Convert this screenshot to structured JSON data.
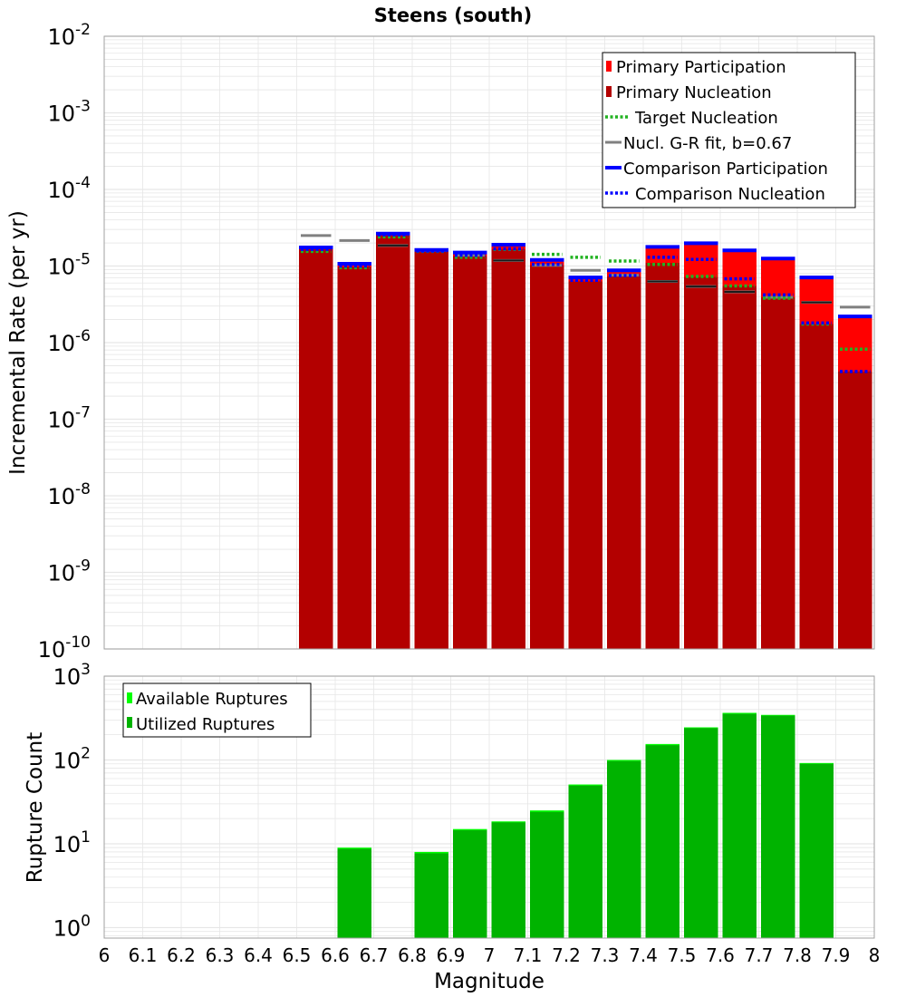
{
  "title": "Steens (south)",
  "colors": {
    "primary_participation": "#ff0000",
    "primary_nucleation": "#b30000",
    "target_nucleation": "#22b322",
    "gr_fit": "#808080",
    "comparison_participation": "#0000ff",
    "comparison_nucleation": "#0000ff",
    "available_ruptures": "#00ff00",
    "utilized_ruptures": "#00b300",
    "grid": "#e6e6e6",
    "black_tick": "#1a1a1a"
  },
  "chart_data": [
    {
      "type": "bar",
      "title": "Steens (south)",
      "xlabel": "",
      "ylabel": "Incremental Rate (per yr)",
      "yscale": "log",
      "xlim": [
        6,
        8
      ],
      "ylim": [
        1e-10,
        0.01
      ],
      "y_ticks": [
        {
          "base": "10",
          "exp": "-10"
        },
        {
          "base": "10",
          "exp": "-9"
        },
        {
          "base": "10",
          "exp": "-8"
        },
        {
          "base": "10",
          "exp": "-7"
        },
        {
          "base": "10",
          "exp": "-6"
        },
        {
          "base": "10",
          "exp": "-5"
        },
        {
          "base": "10",
          "exp": "-4"
        },
        {
          "base": "10",
          "exp": "-3"
        },
        {
          "base": "10",
          "exp": "-2"
        }
      ],
      "grid": true,
      "legend_position": "top-right",
      "bin_width": 0.1,
      "x": [
        6.55,
        6.65,
        6.75,
        6.85,
        6.95,
        7.05,
        7.15,
        7.25,
        7.35,
        7.45,
        7.55,
        7.65,
        7.75,
        7.85,
        7.95
      ],
      "series": [
        {
          "name": "Primary Participation",
          "style": "bar",
          "values": [
            1.7e-05,
            1.03e-05,
            2.6e-05,
            1.6e-05,
            1.45e-05,
            1.85e-05,
            1.17e-05,
            6.9e-06,
            8.5e-06,
            1.72e-05,
            1.9e-05,
            1.55e-05,
            1.2e-05,
            6.8e-06,
            2.15e-06
          ]
        },
        {
          "name": "Primary Nucleation",
          "style": "bar",
          "values": [
            1.65e-05,
            9.8e-06,
            2.5e-05,
            1.55e-05,
            1.35e-05,
            1.65e-05,
            1.03e-05,
            6.3e-06,
            7.3e-06,
            1.1e-05,
            7.2e-06,
            5.5e-06,
            3.9e-06,
            1.75e-06,
            4.2e-07
          ]
        },
        {
          "name": "Target Nucleation",
          "style": "dotted",
          "values": [
            1.55e-05,
            9.5e-06,
            2.4e-05,
            1.55e-05,
            1.3e-05,
            1.65e-05,
            1.42e-05,
            1.3e-05,
            1.16e-05,
            1.05e-05,
            7.3e-06,
            5.5e-06,
            3.8e-06,
            1.75e-06,
            8.2e-07
          ]
        },
        {
          "name": "Nucl. G-R fit, b=0.67",
          "style": "solid",
          "values": [
            2.5e-05,
            2.15e-05,
            1.85e-05,
            1.6e-05,
            1.38e-05,
            1.18e-05,
            1.02e-05,
            8.8e-06,
            7.6e-06,
            6.3e-06,
            5.4e-06,
            4.6e-06,
            3.9e-06,
            3.35e-06,
            2.9e-06
          ]
        },
        {
          "name": "Comparison Participation",
          "style": "solid",
          "values": [
            1.75e-05,
            1.07e-05,
            2.65e-05,
            1.62e-05,
            1.5e-05,
            1.9e-05,
            1.2e-05,
            7.1e-06,
            8.8e-06,
            1.78e-05,
            1.98e-05,
            1.6e-05,
            1.25e-05,
            7.1e-06,
            2.2e-06
          ]
        },
        {
          "name": "Comparison Nucleation",
          "style": "dotted",
          "values": [
            1.65e-05,
            1e-05,
            2.55e-05,
            1.57e-05,
            1.38e-05,
            1.68e-05,
            1.05e-05,
            6.5e-06,
            7.5e-06,
            1.3e-05,
            1.22e-05,
            6.8e-06,
            4.2e-06,
            1.8e-06,
            4.2e-07
          ]
        }
      ],
      "black_ticks": [
        null,
        null,
        1.85e-05,
        null,
        null,
        1.18e-05,
        null,
        null,
        null,
        6.3e-06,
        5.4e-06,
        4.6e-06,
        null,
        3.35e-06,
        null
      ]
    },
    {
      "type": "bar",
      "title": "",
      "xlabel": "Magnitude",
      "ylabel": "Rupture Count",
      "yscale": "log",
      "xlim": [
        6,
        8
      ],
      "ylim": [
        0.75,
        1000
      ],
      "y_ticks": [
        {
          "base": "10",
          "exp": "0"
        },
        {
          "base": "10",
          "exp": "1"
        },
        {
          "base": "10",
          "exp": "2"
        },
        {
          "base": "10",
          "exp": "3"
        }
      ],
      "x_ticks": [
        "6",
        "6.1",
        "6.2",
        "6.3",
        "6.4",
        "6.5",
        "6.6",
        "6.7",
        "6.8",
        "6.9",
        "7",
        "7.1",
        "7.2",
        "7.3",
        "7.4",
        "7.5",
        "7.6",
        "7.7",
        "7.8",
        "7.9",
        "8"
      ],
      "grid": true,
      "legend_position": "top-left",
      "bin_width": 0.1,
      "x": [
        6.65,
        6.85,
        6.95,
        7.05,
        7.15,
        7.25,
        7.35,
        7.45,
        7.55,
        7.65,
        7.75,
        7.85
      ],
      "series": [
        {
          "name": "Available Ruptures",
          "values": [
            9,
            8,
            15,
            18.5,
            25,
            51,
            100,
            155,
            245,
            365,
            345,
            92
          ]
        },
        {
          "name": "Utilized Ruptures",
          "values": [
            8.7,
            7.7,
            14.5,
            18,
            24,
            49.5,
            97,
            150,
            240,
            355,
            338,
            90
          ]
        }
      ]
    }
  ]
}
